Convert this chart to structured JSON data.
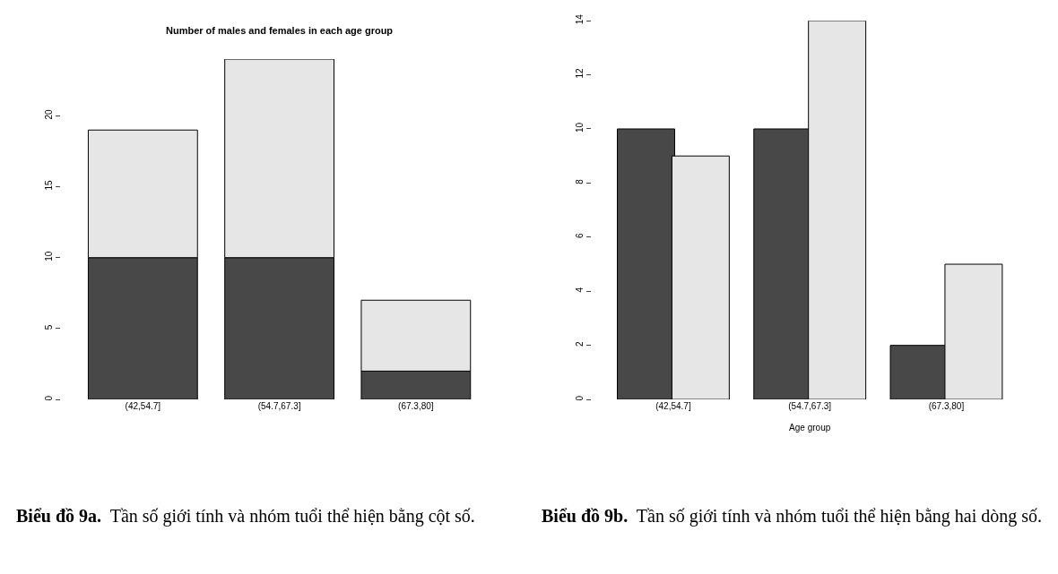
{
  "chart_data": [
    {
      "type": "bar",
      "title": "Number of males and females in each age group",
      "categories": [
        "(42,54.7]",
        "(54.7,67.3]",
        "(67.3,80]"
      ],
      "stacked": true,
      "series": [
        {
          "color": "#484848",
          "values": [
            10,
            10,
            2
          ]
        },
        {
          "color": "#e6e6e6",
          "values": [
            9,
            14,
            5
          ]
        }
      ],
      "ylim": [
        0,
        24
      ],
      "yticks": [
        0,
        5,
        10,
        15,
        20
      ],
      "annotations": [
        "Biểu đồ 9a.",
        "Tần số giới tính và nhóm tuổi thể hiện bằng cột số."
      ]
    },
    {
      "type": "bar",
      "xlabel": "Age group",
      "categories": [
        "(42,54.7]",
        "(54.7,67.3]",
        "(67.3,80]"
      ],
      "stacked": false,
      "series": [
        {
          "color": "#484848",
          "values": [
            10,
            10,
            2
          ]
        },
        {
          "color": "#e6e6e6",
          "values": [
            9,
            14,
            5
          ]
        }
      ],
      "ylim": [
        0,
        14
      ],
      "yticks": [
        0,
        2,
        4,
        6,
        8,
        10,
        12,
        14
      ],
      "annotations": [
        "Biểu đồ 9b.",
        "Tần số giới tính và nhóm tuổi thể hiện bằng hai dòng số."
      ]
    }
  ]
}
